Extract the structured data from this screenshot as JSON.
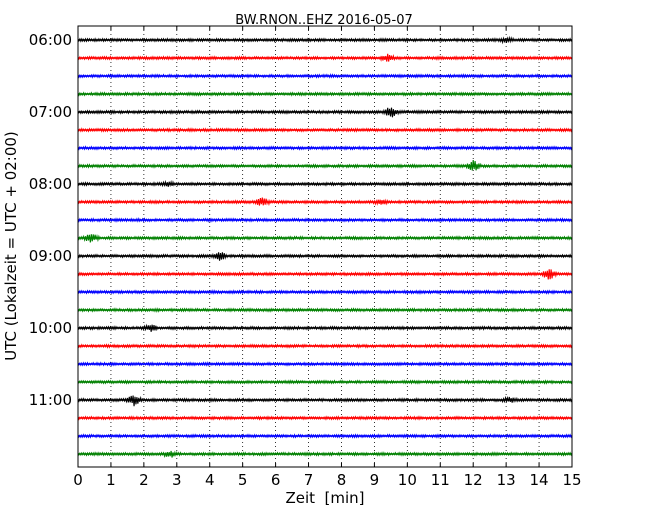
{
  "chart_data": {
    "type": "line",
    "title": "BW.RNON..EHZ 2016-05-07",
    "xlabel": "Zeit  [min]",
    "ylabel": "UTC (Lokalzeit = UTC + 02:00)",
    "xlim": [
      0,
      15
    ],
    "x_ticks": [
      0,
      1,
      2,
      3,
      4,
      5,
      6,
      7,
      8,
      9,
      10,
      11,
      12,
      13,
      14,
      15
    ],
    "y_tick_labels": [
      "06:00",
      "07:00",
      "08:00",
      "09:00",
      "10:00",
      "11:00"
    ],
    "x_grid": "dotted",
    "trace_colors": [
      "#000000",
      "#ff0000",
      "#0000ff",
      "#008000"
    ],
    "traces": [
      {
        "start": "06:00",
        "color": "#000000",
        "events": [
          [
            13.0,
            2
          ]
        ]
      },
      {
        "start": "06:15",
        "color": "#ff0000",
        "events": [
          [
            9.4,
            3
          ]
        ]
      },
      {
        "start": "06:30",
        "color": "#0000ff",
        "events": []
      },
      {
        "start": "06:45",
        "color": "#008000",
        "events": []
      },
      {
        "start": "07:00",
        "color": "#000000",
        "events": [
          [
            9.5,
            5
          ]
        ]
      },
      {
        "start": "07:15",
        "color": "#ff0000",
        "events": []
      },
      {
        "start": "07:30",
        "color": "#0000ff",
        "events": []
      },
      {
        "start": "07:45",
        "color": "#008000",
        "events": [
          [
            12.0,
            5
          ]
        ]
      },
      {
        "start": "08:00",
        "color": "#000000",
        "events": [
          [
            2.7,
            2
          ]
        ]
      },
      {
        "start": "08:15",
        "color": "#ff0000",
        "events": [
          [
            5.6,
            4
          ],
          [
            9.2,
            2
          ]
        ]
      },
      {
        "start": "08:30",
        "color": "#0000ff",
        "events": []
      },
      {
        "start": "08:45",
        "color": "#008000",
        "events": [
          [
            0.4,
            4
          ]
        ]
      },
      {
        "start": "09:00",
        "color": "#000000",
        "events": [
          [
            4.3,
            4
          ]
        ]
      },
      {
        "start": "09:15",
        "color": "#ff0000",
        "events": [
          [
            14.3,
            5
          ]
        ]
      },
      {
        "start": "09:30",
        "color": "#0000ff",
        "events": []
      },
      {
        "start": "09:45",
        "color": "#008000",
        "events": []
      },
      {
        "start": "10:00",
        "color": "#000000",
        "events": [
          [
            2.2,
            3
          ]
        ]
      },
      {
        "start": "10:15",
        "color": "#ff0000",
        "events": []
      },
      {
        "start": "10:30",
        "color": "#0000ff",
        "events": []
      },
      {
        "start": "10:45",
        "color": "#008000",
        "events": []
      },
      {
        "start": "11:00",
        "color": "#000000",
        "events": [
          [
            1.7,
            5
          ],
          [
            13.1,
            2
          ]
        ]
      },
      {
        "start": "11:15",
        "color": "#ff0000",
        "events": []
      },
      {
        "start": "11:30",
        "color": "#0000ff",
        "events": []
      },
      {
        "start": "11:45",
        "color": "#008000",
        "events": [
          [
            2.8,
            3
          ]
        ]
      }
    ]
  }
}
